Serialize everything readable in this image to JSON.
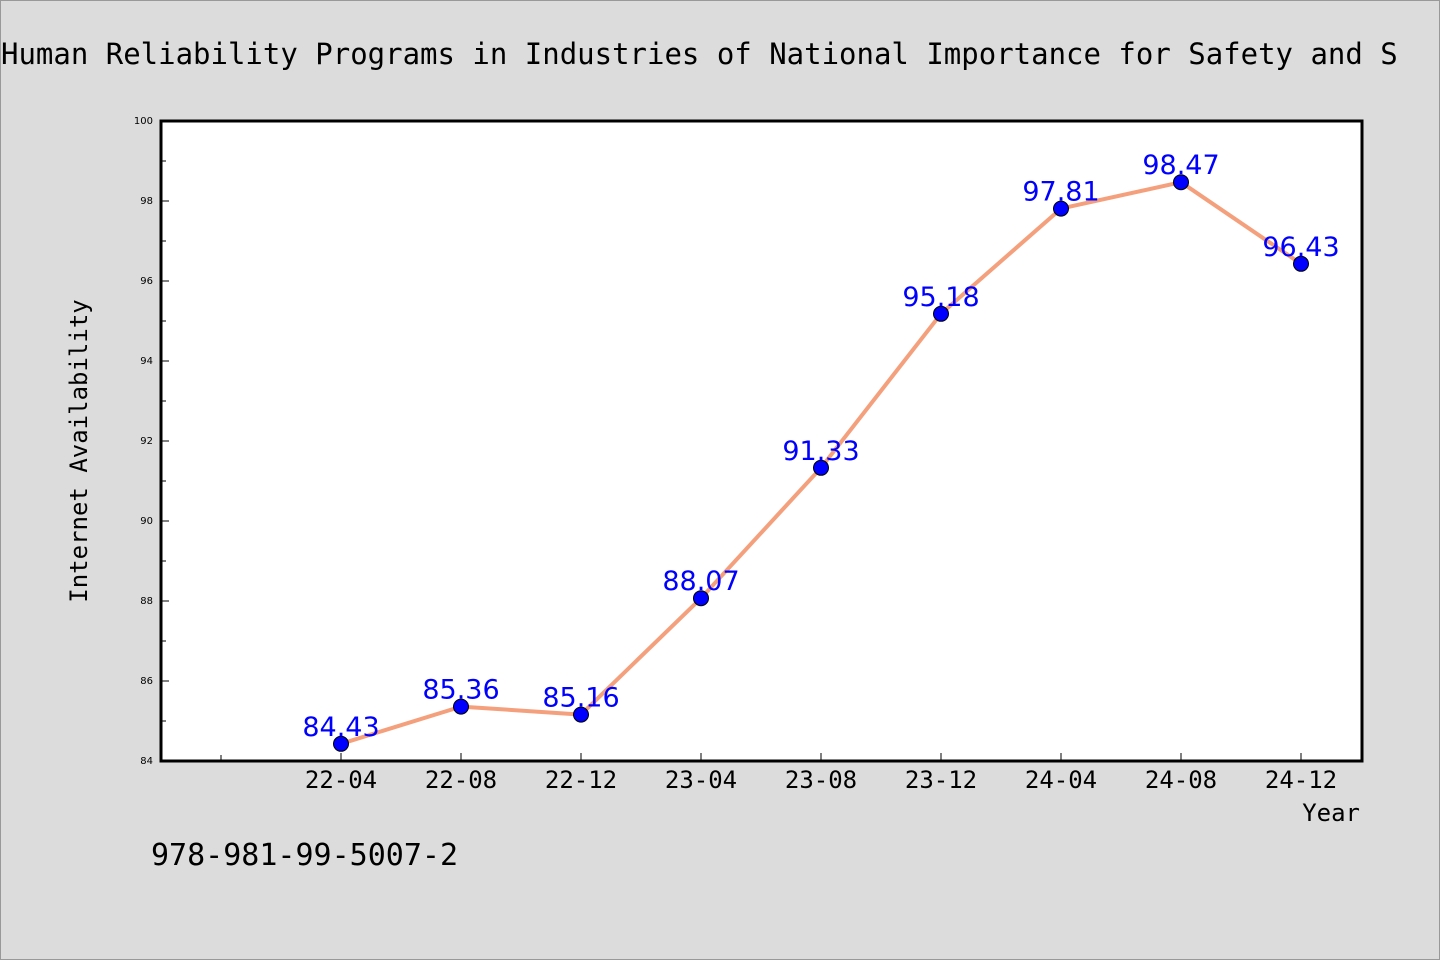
{
  "chart_data": {
    "type": "line",
    "title": "Human Reliability Programs in Industries of National Importance for Safety and S",
    "xlabel": "Year",
    "ylabel": "Internet Availability",
    "categories": [
      "22-04",
      "22-08",
      "22-12",
      "23-04",
      "23-08",
      "23-12",
      "24-04",
      "24-08",
      "24-12"
    ],
    "series": [
      {
        "values": [
          84.43,
          85.36,
          85.16,
          88.07,
          91.33,
          95.18,
          97.81,
          98.47,
          96.43
        ]
      }
    ],
    "data_labels": [
      "84.43",
      "85.36",
      "85.16",
      "88.07",
      "91.33",
      "95.18",
      "97.81",
      "98.47",
      "96.43"
    ],
    "ylim": [
      84,
      100
    ],
    "y_ticks": [
      "84",
      "86",
      "88",
      "90",
      "92",
      "94",
      "96",
      "98",
      "100"
    ],
    "grid": false,
    "line_color": "#f4a07c",
    "marker_color": "#0000ff",
    "label_color": "#0000ff"
  },
  "footer_text": "978-981-99-5007-2"
}
